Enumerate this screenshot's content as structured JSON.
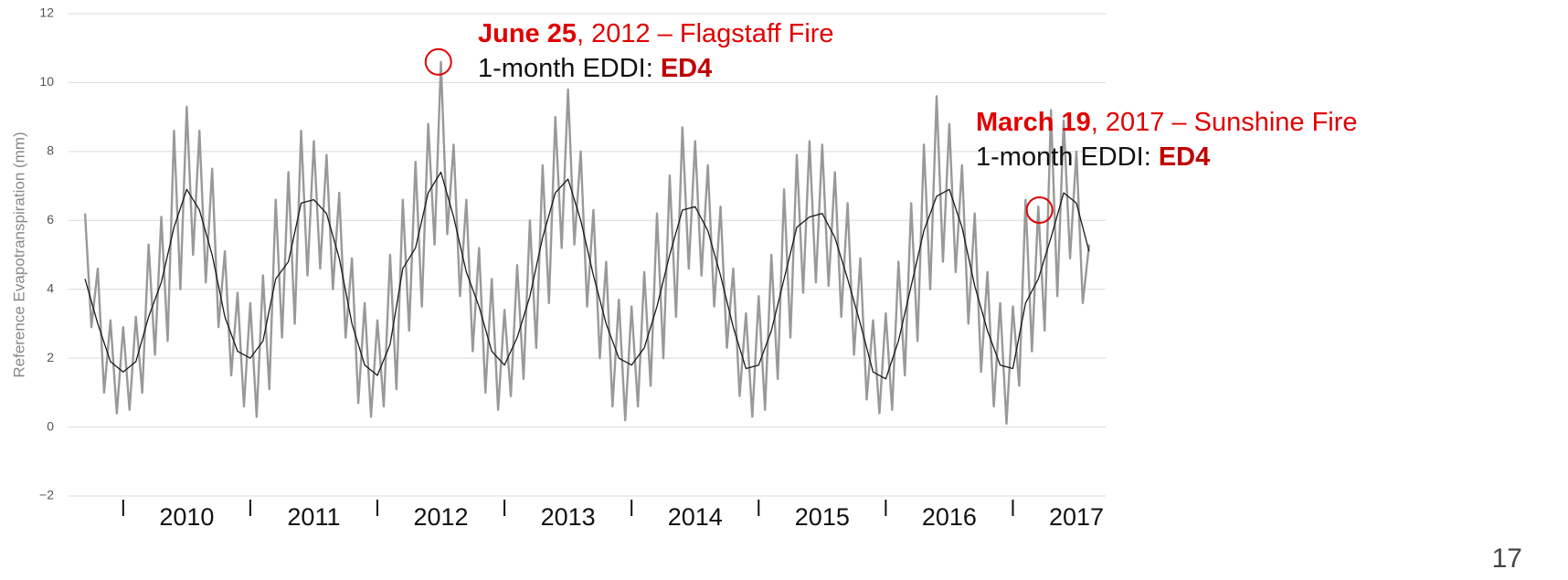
{
  "chart_data": {
    "type": "line",
    "y_label": "Reference Evapotranspiration (mm)",
    "ylim": [
      -2,
      12
    ],
    "yticks": [
      {
        "value": -2,
        "label": "−2"
      },
      0,
      2,
      4,
      6,
      8,
      10,
      12
    ],
    "xlim": [
      2009.57,
      2017.73
    ],
    "xticks": [
      2010,
      2011,
      2012,
      2013,
      2014,
      2015,
      2016,
      2017
    ],
    "grid": true,
    "series": [
      {
        "color": "#999999",
        "x": [
          2009.7,
          2009.75,
          2009.8,
          2009.85,
          2009.9,
          2009.95,
          2010.0,
          2010.05,
          2010.1,
          2010.15,
          2010.2,
          2010.25,
          2010.3,
          2010.35,
          2010.4,
          2010.45,
          2010.5,
          2010.55,
          2010.6,
          2010.65,
          2010.7,
          2010.75,
          2010.8,
          2010.85,
          2010.9,
          2010.95,
          2011.0,
          2011.05,
          2011.1,
          2011.15,
          2011.2,
          2011.25,
          2011.3,
          2011.35,
          2011.4,
          2011.45,
          2011.5,
          2011.55,
          2011.6,
          2011.65,
          2011.7,
          2011.75,
          2011.8,
          2011.85,
          2011.9,
          2011.95,
          2012.0,
          2012.05,
          2012.1,
          2012.15,
          2012.2,
          2012.25,
          2012.3,
          2012.35,
          2012.4,
          2012.45,
          2012.5,
          2012.55,
          2012.6,
          2012.65,
          2012.7,
          2012.75,
          2012.8,
          2012.85,
          2012.9,
          2012.95,
          2013.0,
          2013.05,
          2013.1,
          2013.15,
          2013.2,
          2013.25,
          2013.3,
          2013.35,
          2013.4,
          2013.45,
          2013.5,
          2013.55,
          2013.6,
          2013.65,
          2013.7,
          2013.75,
          2013.8,
          2013.85,
          2013.9,
          2013.95,
          2014.0,
          2014.05,
          2014.1,
          2014.15,
          2014.2,
          2014.25,
          2014.3,
          2014.35,
          2014.4,
          2014.45,
          2014.5,
          2014.55,
          2014.6,
          2014.65,
          2014.7,
          2014.75,
          2014.8,
          2014.85,
          2014.9,
          2014.95,
          2015.0,
          2015.05,
          2015.1,
          2015.15,
          2015.2,
          2015.25,
          2015.3,
          2015.35,
          2015.4,
          2015.45,
          2015.5,
          2015.55,
          2015.6,
          2015.65,
          2015.7,
          2015.75,
          2015.8,
          2015.85,
          2015.9,
          2015.95,
          2016.0,
          2016.05,
          2016.1,
          2016.15,
          2016.2,
          2016.25,
          2016.3,
          2016.35,
          2016.4,
          2016.45,
          2016.5,
          2016.55,
          2016.6,
          2016.65,
          2016.7,
          2016.75,
          2016.8,
          2016.85,
          2016.9,
          2016.95,
          2017.0,
          2017.05,
          2017.1,
          2017.15,
          2017.2,
          2017.25,
          2017.3,
          2017.35,
          2017.4,
          2017.45,
          2017.5,
          2017.55,
          2017.6
        ],
        "values": [
          6.2,
          2.9,
          4.6,
          1.0,
          3.1,
          0.4,
          2.9,
          0.5,
          3.2,
          1.0,
          5.3,
          2.1,
          6.1,
          2.5,
          8.6,
          4.0,
          9.3,
          5.0,
          8.6,
          4.2,
          7.5,
          2.9,
          5.1,
          1.5,
          3.9,
          0.6,
          3.6,
          0.3,
          4.4,
          1.1,
          6.6,
          2.6,
          7.4,
          3.0,
          8.6,
          4.4,
          8.3,
          4.6,
          7.9,
          4.0,
          6.8,
          2.6,
          4.9,
          0.7,
          3.6,
          0.3,
          3.1,
          0.6,
          5.0,
          1.1,
          6.6,
          2.8,
          7.7,
          3.5,
          8.8,
          5.3,
          10.6,
          5.6,
          8.2,
          3.8,
          6.6,
          2.2,
          5.2,
          1.0,
          4.3,
          0.5,
          3.4,
          0.9,
          4.7,
          1.4,
          6.0,
          2.3,
          7.6,
          3.6,
          9.0,
          5.2,
          9.8,
          5.3,
          8.0,
          3.5,
          6.3,
          2.0,
          4.8,
          0.6,
          3.7,
          0.2,
          3.5,
          0.6,
          4.5,
          1.2,
          6.2,
          2.0,
          7.3,
          3.2,
          8.7,
          4.6,
          8.3,
          4.4,
          7.6,
          3.5,
          6.4,
          2.3,
          4.6,
          0.9,
          3.3,
          0.3,
          3.8,
          0.5,
          5.0,
          1.4,
          6.9,
          2.6,
          7.9,
          3.9,
          8.3,
          4.2,
          8.2,
          4.1,
          7.4,
          3.2,
          6.5,
          2.1,
          4.9,
          0.8,
          3.1,
          0.4,
          3.3,
          0.5,
          4.8,
          1.5,
          6.5,
          2.5,
          8.2,
          4.0,
          9.6,
          4.8,
          8.8,
          4.5,
          7.6,
          3.0,
          6.2,
          1.6,
          4.5,
          0.6,
          3.6,
          0.1,
          3.5,
          1.2,
          6.6,
          2.2,
          6.4,
          2.8,
          9.2,
          3.8,
          8.9,
          4.9,
          8.0,
          3.6,
          5.3
        ]
      },
      {
        "color": "#1a1a1a",
        "x": [
          2009.7,
          2009.8,
          2009.9,
          2010.0,
          2010.1,
          2010.2,
          2010.3,
          2010.4,
          2010.5,
          2010.6,
          2010.7,
          2010.8,
          2010.9,
          2011.0,
          2011.1,
          2011.2,
          2011.3,
          2011.4,
          2011.5,
          2011.6,
          2011.7,
          2011.8,
          2011.9,
          2012.0,
          2012.1,
          2012.2,
          2012.3,
          2012.4,
          2012.5,
          2012.6,
          2012.7,
          2012.8,
          2012.9,
          2013.0,
          2013.1,
          2013.2,
          2013.3,
          2013.4,
          2013.5,
          2013.6,
          2013.7,
          2013.8,
          2013.9,
          2014.0,
          2014.1,
          2014.2,
          2014.3,
          2014.4,
          2014.5,
          2014.6,
          2014.7,
          2014.8,
          2014.9,
          2015.0,
          2015.1,
          2015.2,
          2015.3,
          2015.4,
          2015.5,
          2015.6,
          2015.7,
          2015.8,
          2015.9,
          2016.0,
          2016.1,
          2016.2,
          2016.3,
          2016.4,
          2016.5,
          2016.6,
          2016.7,
          2016.8,
          2016.9,
          2017.0,
          2017.1,
          2017.2,
          2017.3,
          2017.4,
          2017.5,
          2017.6
        ],
        "values": [
          4.3,
          3.0,
          1.9,
          1.6,
          1.9,
          3.2,
          4.2,
          5.8,
          6.9,
          6.3,
          5.0,
          3.2,
          2.2,
          2.0,
          2.5,
          4.3,
          4.8,
          6.5,
          6.6,
          6.2,
          4.9,
          3.0,
          1.8,
          1.5,
          2.4,
          4.6,
          5.2,
          6.8,
          7.4,
          6.1,
          4.5,
          3.5,
          2.2,
          1.8,
          2.6,
          3.8,
          5.5,
          6.8,
          7.2,
          6.0,
          4.4,
          3.0,
          2.0,
          1.8,
          2.3,
          3.5,
          5.0,
          6.3,
          6.4,
          5.7,
          4.4,
          2.9,
          1.7,
          1.8,
          2.8,
          4.3,
          5.8,
          6.1,
          6.2,
          5.5,
          4.3,
          3.0,
          1.6,
          1.4,
          2.5,
          4.1,
          5.7,
          6.7,
          6.9,
          5.8,
          4.1,
          2.8,
          1.8,
          1.7,
          3.6,
          4.3,
          5.5,
          6.8,
          6.5,
          5.1
        ]
      }
    ],
    "annotations": [
      {
        "date": "June 25",
        "event": ", 2012 – Flagstaff Fire",
        "index_label": "1-month EDDI: ",
        "level": "ED4",
        "x": 2012.48,
        "y": 10.6
      },
      {
        "date": "March 19",
        "event": ", 2017 – Sunshine Fire",
        "index_label": "1-month EDDI: ",
        "level": "ED4",
        "x": 2017.21,
        "y": 6.3
      }
    ],
    "page_number": "17"
  }
}
